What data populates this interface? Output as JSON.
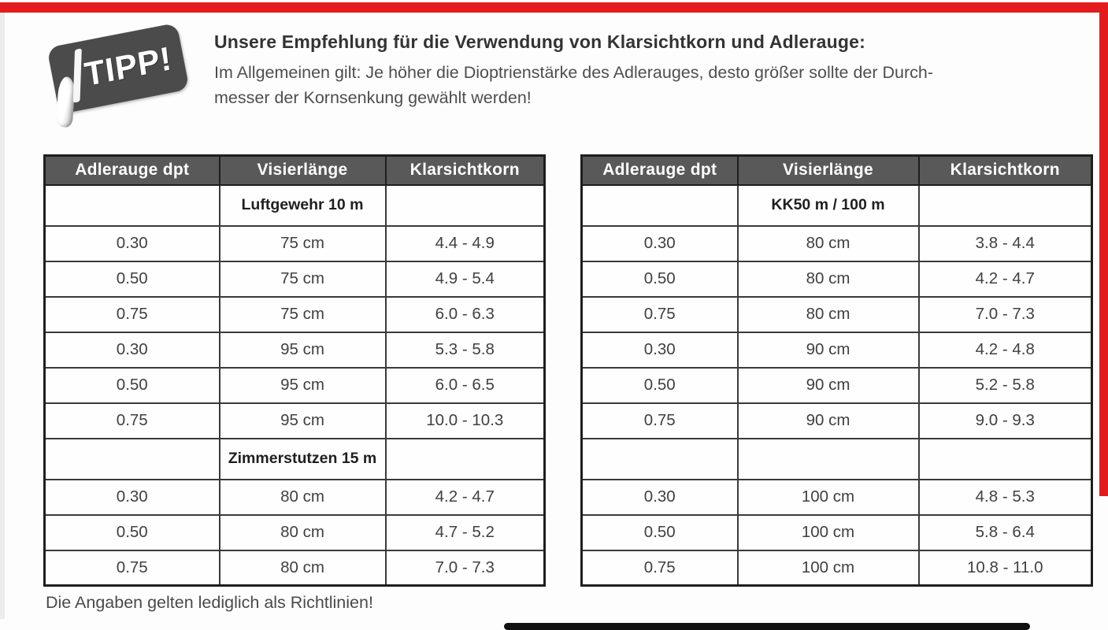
{
  "badge": {
    "label": "TIPP!"
  },
  "intro": {
    "heading": "Unsere Empfehlung für die Verwendung von Klarsichtkorn und Adlerauge:",
    "line1": "Im Allgemeinen gilt: Je höher die Dioptrienstärke des Adlerauges, desto größer sollte der Durch-",
    "line2": "messer der Kornsenkung gewählt werden!"
  },
  "tables": [
    {
      "headers": [
        "Adlerauge dpt",
        "Visierlänge",
        "Klarsichtkorn"
      ],
      "sections": [
        {
          "title": "Luftgewehr 10 m",
          "rows": [
            [
              "0.30",
              "75 cm",
              "4.4 - 4.9"
            ],
            [
              "0.50",
              "75 cm",
              "4.9 - 5.4"
            ],
            [
              "0.75",
              "75 cm",
              "6.0 - 6.3"
            ],
            [
              "0.30",
              "95 cm",
              "5.3 - 5.8"
            ],
            [
              "0.50",
              "95 cm",
              "6.0 - 6.5"
            ],
            [
              "0.75",
              "95 cm",
              "10.0 - 10.3"
            ]
          ]
        },
        {
          "title": "Zimmerstutzen 15 m",
          "rows": [
            [
              "0.30",
              "80 cm",
              "4.2 - 4.7"
            ],
            [
              "0.50",
              "80 cm",
              "4.7 - 5.2"
            ],
            [
              "0.75",
              "80 cm",
              "7.0 - 7.3"
            ]
          ]
        }
      ]
    },
    {
      "headers": [
        "Adlerauge dpt",
        "Visierlänge",
        "Klarsichtkorn"
      ],
      "sections": [
        {
          "title": "KK50 m / 100 m",
          "rows": [
            [
              "0.30",
              "80 cm",
              "3.8 - 4.4"
            ],
            [
              "0.50",
              "80 cm",
              "4.2 - 4.7"
            ],
            [
              "0.75",
              "80 cm",
              "7.0 - 7.3"
            ],
            [
              "0.30",
              "90 cm",
              "4.2 - 4.8"
            ],
            [
              "0.50",
              "90 cm",
              "5.2 - 5.8"
            ],
            [
              "0.75",
              "90 cm",
              "9.0 - 9.3"
            ]
          ]
        },
        {
          "title": "",
          "rows": [
            [
              "0.30",
              "100 cm",
              "4.8 - 5.3"
            ],
            [
              "0.50",
              "100 cm",
              "5.8 - 6.4"
            ],
            [
              "0.75",
              "100 cm",
              "10.8 - 11.0"
            ]
          ]
        }
      ]
    }
  ],
  "footer": {
    "note": "Die Angaben gelten lediglich als Richtlinien!"
  },
  "colors": {
    "accent_red": "#e41b1d",
    "table_header_bg": "#595959",
    "badge_bg": "#4b4b4b",
    "scan_bar_black": "#111111"
  }
}
